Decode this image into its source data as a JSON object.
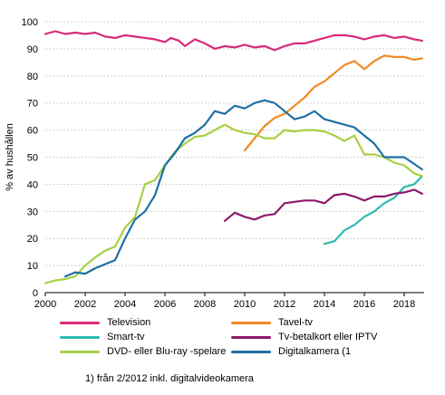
{
  "chart_data": {
    "type": "line",
    "title": "",
    "xlabel": "",
    "ylabel": "% av hushållen",
    "xlim": [
      2000,
      2019
    ],
    "ylim": [
      0,
      100
    ],
    "xticks": [
      2000,
      2002,
      2004,
      2006,
      2008,
      2010,
      2012,
      2014,
      2016,
      2018
    ],
    "yticks": [
      0,
      10,
      20,
      30,
      40,
      50,
      60,
      70,
      80,
      90,
      100
    ],
    "grid": "horizontal",
    "legend_position": "bottom",
    "series": [
      {
        "name": "Television",
        "color": "#d9297a",
        "points": [
          [
            2000,
            95.5
          ],
          [
            2000.5,
            96.5
          ],
          [
            2001,
            95.5
          ],
          [
            2001.5,
            96
          ],
          [
            2002,
            95.5
          ],
          [
            2002.5,
            96
          ],
          [
            2003,
            94.5
          ],
          [
            2003.5,
            94
          ],
          [
            2004,
            95
          ],
          [
            2004.5,
            94.5
          ],
          [
            2005,
            94
          ],
          [
            2005.5,
            93.5
          ],
          [
            2006,
            92.5
          ],
          [
            2006.3,
            94
          ],
          [
            2006.7,
            93
          ],
          [
            2007,
            91
          ],
          [
            2007.5,
            93.5
          ],
          [
            2008,
            92
          ],
          [
            2008.5,
            90
          ],
          [
            2009,
            91
          ],
          [
            2009.5,
            90.5
          ],
          [
            2010,
            91.5
          ],
          [
            2010.5,
            90.5
          ],
          [
            2011,
            91
          ],
          [
            2011.5,
            89.5
          ],
          [
            2012,
            91
          ],
          [
            2012.5,
            92
          ],
          [
            2013,
            92
          ],
          [
            2013.5,
            93
          ],
          [
            2014,
            94
          ],
          [
            2014.5,
            95
          ],
          [
            2015,
            95
          ],
          [
            2015.5,
            94.5
          ],
          [
            2016,
            93.5
          ],
          [
            2016.5,
            94.5
          ],
          [
            2017,
            95
          ],
          [
            2017.5,
            94
          ],
          [
            2018,
            94.5
          ],
          [
            2018.5,
            93.5
          ],
          [
            2018.9,
            93
          ]
        ]
      },
      {
        "name": "Tavel-tv",
        "color": "#f08a24",
        "points": [
          [
            2010,
            52.5
          ],
          [
            2010.5,
            57
          ],
          [
            2011,
            61.5
          ],
          [
            2011.5,
            64.5
          ],
          [
            2012,
            66
          ],
          [
            2012.5,
            69
          ],
          [
            2013,
            72
          ],
          [
            2013.5,
            76
          ],
          [
            2014,
            78
          ],
          [
            2014.5,
            81
          ],
          [
            2015,
            84
          ],
          [
            2015.5,
            85.5
          ],
          [
            2016,
            82.5
          ],
          [
            2016.5,
            85.5
          ],
          [
            2017,
            87.5
          ],
          [
            2017.5,
            87
          ],
          [
            2018,
            87
          ],
          [
            2018.5,
            86
          ],
          [
            2018.9,
            86.5
          ]
        ]
      },
      {
        "name": "Smart-tv",
        "color": "#2cbcb1",
        "points": [
          [
            2014,
            18
          ],
          [
            2014.5,
            19
          ],
          [
            2015,
            23
          ],
          [
            2015.5,
            25
          ],
          [
            2016,
            28
          ],
          [
            2016.5,
            30
          ],
          [
            2017,
            33
          ],
          [
            2017.5,
            35
          ],
          [
            2018,
            39
          ],
          [
            2018.5,
            40
          ],
          [
            2018.9,
            43
          ]
        ]
      },
      {
        "name": "Tv-betalkort eller IPTV",
        "color": "#8e1a6b",
        "points": [
          [
            2009,
            26.5
          ],
          [
            2009.5,
            29.5
          ],
          [
            2010,
            28
          ],
          [
            2010.5,
            27
          ],
          [
            2011,
            28.5
          ],
          [
            2011.5,
            29
          ],
          [
            2012,
            33
          ],
          [
            2012.5,
            33.5
          ],
          [
            2013,
            34
          ],
          [
            2013.5,
            34
          ],
          [
            2014,
            33
          ],
          [
            2014.5,
            36
          ],
          [
            2015,
            36.5
          ],
          [
            2015.5,
            35.5
          ],
          [
            2016,
            34
          ],
          [
            2016.5,
            35.5
          ],
          [
            2017,
            35.5
          ],
          [
            2017.5,
            36.5
          ],
          [
            2018,
            37
          ],
          [
            2018.5,
            38
          ],
          [
            2018.9,
            36.5
          ]
        ]
      },
      {
        "name": "DVD- eller Blu-ray -spelare",
        "color": "#a8d042",
        "points": [
          [
            2000,
            3.5
          ],
          [
            2000.5,
            4.5
          ],
          [
            2001,
            5
          ],
          [
            2001.5,
            6
          ],
          [
            2002,
            10
          ],
          [
            2002.5,
            13
          ],
          [
            2003,
            15.5
          ],
          [
            2003.5,
            17
          ],
          [
            2004,
            24
          ],
          [
            2004.5,
            28
          ],
          [
            2005,
            40
          ],
          [
            2005.5,
            41.5
          ],
          [
            2006,
            47
          ],
          [
            2006.5,
            52
          ],
          [
            2007,
            55
          ],
          [
            2007.5,
            57.5
          ],
          [
            2008,
            58
          ],
          [
            2008.5,
            60
          ],
          [
            2009,
            62
          ],
          [
            2009.5,
            60
          ],
          [
            2010,
            59
          ],
          [
            2010.5,
            58.5
          ],
          [
            2011,
            57
          ],
          [
            2011.5,
            57
          ],
          [
            2012,
            60
          ],
          [
            2012.5,
            59.5
          ],
          [
            2013,
            60
          ],
          [
            2013.5,
            60
          ],
          [
            2014,
            59.5
          ],
          [
            2014.5,
            58
          ],
          [
            2015,
            56
          ],
          [
            2015.5,
            58
          ],
          [
            2016,
            51
          ],
          [
            2016.5,
            51
          ],
          [
            2017,
            50
          ],
          [
            2017.5,
            48
          ],
          [
            2018,
            47
          ],
          [
            2018.5,
            44
          ],
          [
            2018.9,
            43
          ]
        ]
      },
      {
        "name": "Digitalkamera (1",
        "color": "#1f6fa3",
        "points": [
          [
            2001,
            6
          ],
          [
            2001.5,
            7.5
          ],
          [
            2002,
            7
          ],
          [
            2002.5,
            9
          ],
          [
            2003,
            10.5
          ],
          [
            2003.5,
            12
          ],
          [
            2004,
            20
          ],
          [
            2004.5,
            27
          ],
          [
            2005,
            30
          ],
          [
            2005.5,
            36
          ],
          [
            2006,
            47
          ],
          [
            2006.5,
            51.5
          ],
          [
            2007,
            57
          ],
          [
            2007.5,
            59
          ],
          [
            2008,
            62
          ],
          [
            2008.5,
            67
          ],
          [
            2009,
            66
          ],
          [
            2009.5,
            69
          ],
          [
            2010,
            68
          ],
          [
            2010.5,
            70
          ],
          [
            2011,
            71
          ],
          [
            2011.5,
            70
          ],
          [
            2012,
            67
          ],
          [
            2012.5,
            64
          ],
          [
            2013,
            65
          ],
          [
            2013.5,
            67
          ],
          [
            2014,
            64
          ],
          [
            2014.5,
            63
          ],
          [
            2015,
            62
          ],
          [
            2015.5,
            61
          ],
          [
            2016,
            58
          ],
          [
            2016.5,
            55
          ],
          [
            2017,
            50
          ],
          [
            2017.5,
            50
          ],
          [
            2018,
            50
          ],
          [
            2018.5,
            47.5
          ],
          [
            2018.9,
            45.5
          ]
        ]
      }
    ],
    "footnote": "1) från 2/2012 inkl. digitalvideokamera"
  }
}
